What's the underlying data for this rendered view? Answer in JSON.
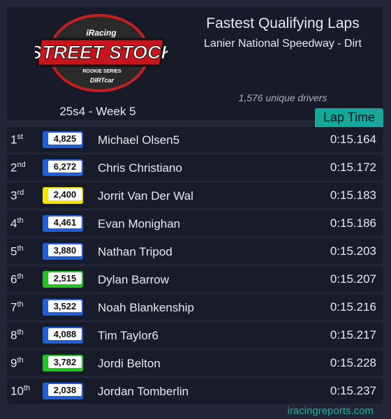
{
  "header": {
    "logo": {
      "brand": "iRacing",
      "series": "STREET STOCK",
      "subtitle": "ROOKIE SERIES",
      "sponsor": "DIRTcar"
    },
    "title": "Fastest Qualifying Laps",
    "track": "Lanier National Speedway - Dirt",
    "drivers": "1,576 unique drivers",
    "season": "25s4 - Week 5"
  },
  "table": {
    "column": "Lap Time",
    "rows": [
      {
        "rank": "1",
        "suffix": "st",
        "rating": "4,825",
        "license_color": "#1f5fd8",
        "name": "Michael Olsen5",
        "time": "0:15.164"
      },
      {
        "rank": "2",
        "suffix": "nd",
        "rating": "6,272",
        "license_color": "#1f5fd8",
        "name": "Chris Christiano",
        "time": "0:15.172"
      },
      {
        "rank": "3",
        "suffix": "rd",
        "rating": "2,400",
        "license_color": "#f2e400",
        "name": "Jorrit Van Der Wal",
        "time": "0:15.183"
      },
      {
        "rank": "4",
        "suffix": "th",
        "rating": "4,461",
        "license_color": "#1f5fd8",
        "name": "Evan Monighan",
        "time": "0:15.186"
      },
      {
        "rank": "5",
        "suffix": "th",
        "rating": "3,880",
        "license_color": "#1f5fd8",
        "name": "Nathan Tripod",
        "time": "0:15.203"
      },
      {
        "rank": "6",
        "suffix": "th",
        "rating": "2,515",
        "license_color": "#22c322",
        "name": "Dylan Barrow",
        "time": "0:15.207"
      },
      {
        "rank": "7",
        "suffix": "th",
        "rating": "3,522",
        "license_color": "#1f5fd8",
        "name": "Noah Blankenship",
        "time": "0:15.216"
      },
      {
        "rank": "8",
        "suffix": "th",
        "rating": "4,088",
        "license_color": "#1f5fd8",
        "name": "Tim Taylor6",
        "time": "0:15.217"
      },
      {
        "rank": "9",
        "suffix": "th",
        "rating": "3,782",
        "license_color": "#22c322",
        "name": "Jordi Belton",
        "time": "0:15.228"
      },
      {
        "rank": "10",
        "suffix": "th",
        "rating": "2,038",
        "license_color": "#1f5fd8",
        "name": "Jordan Tomberlin",
        "time": "0:15.237"
      }
    ]
  },
  "footer": "iracingreports.com"
}
